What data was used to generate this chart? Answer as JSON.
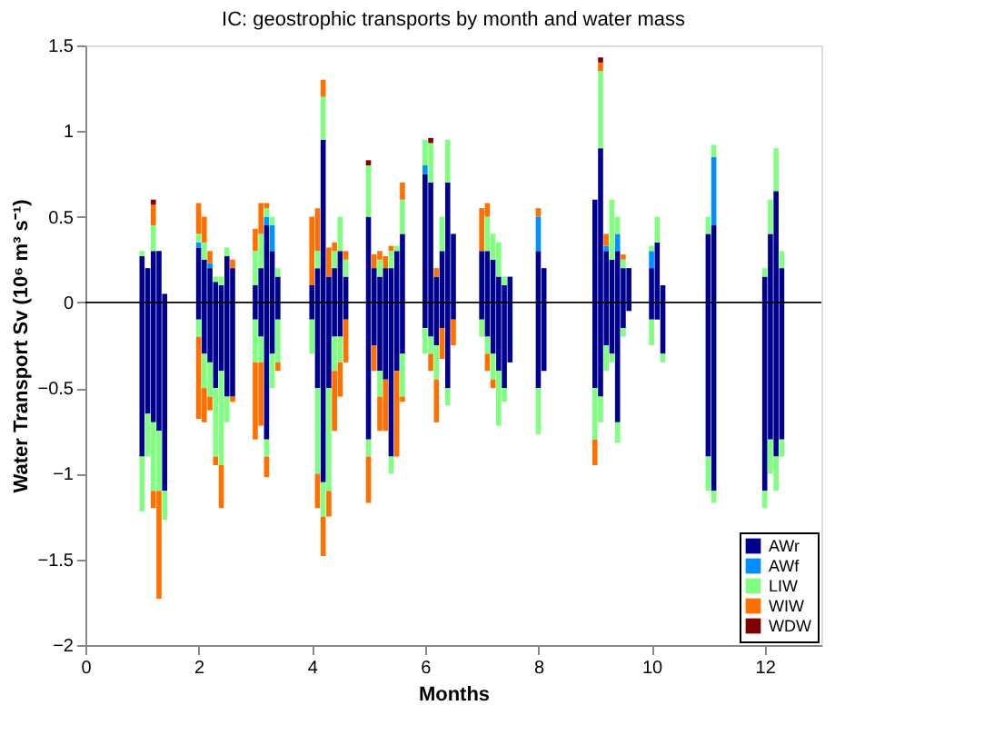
{
  "chart_data": {
    "type": "bar",
    "stacked": true,
    "title": "IC: geostrophic transports by month and water mass",
    "xlabel": "Months",
    "ylabel": "Water Transport Sv (10⁶ m³ s⁻¹)",
    "x": [
      1.0,
      1.1,
      1.2,
      1.3,
      1.4,
      2.0,
      2.1,
      2.2,
      2.3,
      2.4,
      2.5,
      2.6,
      3.0,
      3.1,
      3.2,
      3.3,
      3.4,
      4.0,
      4.1,
      4.2,
      4.3,
      4.4,
      4.5,
      4.6,
      5.0,
      5.1,
      5.2,
      5.3,
      5.4,
      5.5,
      5.6,
      6.0,
      6.1,
      6.2,
      6.3,
      6.4,
      6.5,
      7.0,
      7.1,
      7.2,
      7.3,
      7.4,
      7.5,
      8.0,
      8.1,
      9.0,
      9.1,
      9.2,
      9.3,
      9.4,
      9.5,
      9.6,
      10.0,
      10.1,
      10.2,
      11.0,
      11.1,
      12.0,
      12.1,
      12.2,
      12.3
    ],
    "series": [
      {
        "name": "AWr",
        "color": "#00008f",
        "values": [
          0.27,
          0.2,
          0.3,
          0.3,
          0.05,
          0.32,
          0.25,
          0.2,
          0.12,
          0.1,
          0.27,
          0.2,
          0.1,
          0.2,
          0.45,
          0.3,
          0.15,
          0.1,
          0.2,
          0.95,
          0.15,
          0.2,
          0.3,
          0.15,
          0.5,
          0.2,
          0.15,
          0.2,
          0.2,
          0.3,
          0.4,
          0.75,
          0.7,
          0.15,
          0.3,
          0.7,
          0.4,
          0.3,
          0.3,
          0.25,
          0.15,
          0.1,
          0.15,
          0.3,
          0.2,
          0.6,
          0.9,
          0.3,
          0.25,
          0.3,
          0.2,
          0.2,
          0.2,
          0.35,
          0.1,
          0.4,
          0.45,
          0.15,
          0.4,
          0.65,
          0.2
        ]
      },
      {
        "name": "AWf",
        "color": "#0090ff",
        "values": [
          0,
          0,
          0,
          0,
          0,
          0.03,
          0,
          0.03,
          0,
          0,
          0,
          0,
          0,
          0,
          0.05,
          0.15,
          0,
          0,
          0,
          0,
          0,
          0,
          0,
          0,
          0,
          0,
          0,
          0,
          0,
          0,
          0,
          0.05,
          0,
          0,
          0,
          0,
          0,
          0,
          0,
          0,
          0,
          0,
          0,
          0.2,
          0,
          0,
          0,
          0.03,
          0,
          0.1,
          0,
          0,
          0.1,
          0,
          0,
          0,
          0.4,
          0,
          0,
          0,
          0
        ]
      },
      {
        "name": "LIW",
        "color": "#80ff80",
        "values": [
          0.03,
          0,
          0.15,
          0,
          0,
          0.05,
          0.1,
          0,
          0.03,
          0.05,
          0.05,
          0,
          0.2,
          0.2,
          0.05,
          0.05,
          0.05,
          0,
          0.1,
          0.25,
          0,
          0.1,
          0.2,
          0.1,
          0.3,
          0,
          0.1,
          0,
          0.1,
          0.03,
          0.2,
          0.15,
          0.23,
          0,
          0.2,
          0.25,
          0,
          0,
          0.2,
          0.15,
          0.2,
          0.05,
          0,
          0,
          0,
          0,
          0.45,
          0,
          0.35,
          0.1,
          0.05,
          0,
          0.03,
          0.15,
          0,
          0.1,
          0.07,
          0.05,
          0.2,
          0.25,
          0.1
        ]
      },
      {
        "name": "WIW",
        "color": "#ff7000",
        "values": [
          0,
          0,
          0.12,
          0,
          0,
          0.18,
          0.15,
          0.07,
          0,
          0,
          0,
          0.05,
          0.13,
          0.18,
          0.03,
          0,
          0,
          0.4,
          0.25,
          0.1,
          0.17,
          0.05,
          0,
          0.05,
          0,
          0.08,
          0.05,
          0.07,
          0.03,
          0,
          0.1,
          0,
          0,
          0.05,
          0,
          0,
          0,
          0.25,
          0.08,
          0,
          0,
          0,
          0,
          0.05,
          0,
          0,
          0.05,
          0.07,
          0,
          0,
          0.03,
          0,
          0,
          0,
          0,
          0,
          0,
          0,
          0,
          0,
          0
        ]
      },
      {
        "name": "WDW",
        "color": "#800000",
        "values": [
          0,
          0,
          0.03,
          0,
          0,
          0,
          0,
          0,
          0,
          0,
          0,
          0,
          0,
          0,
          0,
          0,
          0,
          0,
          0,
          0,
          0,
          0,
          0,
          0,
          0.03,
          0,
          0,
          0,
          0,
          0,
          0,
          0,
          0.03,
          0,
          0,
          0,
          0,
          0,
          0,
          0,
          0,
          0,
          0,
          0,
          0,
          0,
          0.03,
          0,
          0,
          0,
          0,
          0,
          0,
          0,
          0,
          0,
          0,
          0,
          0,
          0,
          0
        ]
      },
      {
        "color": "#00008f",
        "values": [
          -0.9,
          -0.65,
          -0.7,
          -0.75,
          -1.1,
          -0.1,
          -0.3,
          -0.35,
          -0.5,
          -0.4,
          -0.55,
          -0.55,
          -0.1,
          -0.2,
          -0.8,
          -0.3,
          -0.1,
          -0.1,
          -0.5,
          -1.05,
          -0.5,
          -0.2,
          -0.2,
          -0.1,
          -0.8,
          -0.25,
          -0.4,
          -0.45,
          -0.9,
          -0.4,
          -0.3,
          -0.15,
          -0.2,
          -0.25,
          -0.15,
          -0.5,
          -0.1,
          -0.1,
          -0.2,
          -0.3,
          -0.4,
          -0.5,
          -0.35,
          -0.5,
          -0.4,
          -0.5,
          -0.55,
          -0.25,
          -0.3,
          -0.7,
          -0.15,
          -0.05,
          -0.1,
          -0.1,
          -0.3,
          -0.9,
          -1.1,
          -1.1,
          -0.8,
          -0.9,
          -0.8
        ]
      },
      {
        "color": "#0090ff",
        "values": [
          0,
          0,
          0,
          0,
          0,
          0,
          0,
          0,
          0,
          0,
          0,
          0,
          0,
          0,
          0,
          0,
          0,
          0,
          0,
          0,
          0,
          0,
          0,
          0,
          0,
          0,
          0,
          0,
          0,
          0,
          0,
          0,
          0,
          0,
          0,
          0,
          0,
          0,
          0,
          0,
          0,
          0,
          0,
          0,
          0,
          0,
          0,
          0,
          0,
          0,
          0,
          0,
          0,
          0,
          0,
          0,
          0,
          0,
          0,
          0,
          0
        ]
      },
      {
        "color": "#80ff80",
        "values": [
          -0.32,
          -0.25,
          -0.4,
          -0.35,
          -0.17,
          -0.1,
          -0.2,
          -0.2,
          -0.4,
          -0.55,
          -0.15,
          0,
          -0.25,
          -0.15,
          -0.1,
          -0.2,
          -0.25,
          -0.2,
          -0.5,
          -0.2,
          -0.6,
          -0.2,
          -0.15,
          0,
          -0.1,
          0,
          -0.15,
          0,
          -0.1,
          0,
          -0.25,
          -0.15,
          -0.1,
          -0.2,
          0,
          -0.1,
          0,
          -0.1,
          -0.1,
          -0.15,
          -0.32,
          -0.08,
          0,
          -0.27,
          0,
          -0.3,
          -0.15,
          -0.15,
          -0.05,
          -0.12,
          -0.05,
          0,
          -0.15,
          0,
          -0.05,
          -0.2,
          -0.07,
          -0.1,
          -0.2,
          -0.2,
          -0.1
        ]
      },
      {
        "color": "#ff7000",
        "values": [
          0,
          0,
          -0.1,
          -0.63,
          0,
          -0.48,
          -0.2,
          -0.08,
          -0.05,
          -0.25,
          0,
          -0.03,
          -0.45,
          -0.37,
          -0.12,
          0,
          -0.05,
          0,
          -0.2,
          -0.23,
          -0.15,
          -0.35,
          -0.2,
          -0.25,
          -0.27,
          -0.15,
          -0.2,
          -0.3,
          0,
          -0.5,
          -0.03,
          0,
          -0.1,
          -0.25,
          -0.18,
          0,
          -0.15,
          0,
          -0.1,
          -0.05,
          0,
          0,
          0,
          0,
          0,
          -0.15,
          0,
          0,
          0,
          0,
          0,
          0,
          0,
          0,
          0,
          0,
          0,
          0,
          0,
          0,
          0
        ]
      },
      {
        "color": "#800000",
        "values": [
          0,
          0,
          0,
          0,
          0,
          0,
          0,
          0,
          0,
          0,
          0,
          0,
          0,
          0,
          0,
          0,
          0,
          0,
          0,
          0,
          0,
          0,
          0,
          0,
          0,
          0,
          0,
          0,
          0,
          0,
          0,
          0,
          0,
          0,
          0,
          0,
          0,
          0,
          0,
          0,
          0,
          0,
          0,
          0,
          0,
          0,
          0,
          0,
          0,
          0,
          0,
          0,
          0,
          0,
          0,
          0,
          0,
          0,
          0,
          0,
          0
        ]
      }
    ],
    "xlim": [
      0,
      13
    ],
    "xticks": [
      0,
      2,
      4,
      6,
      8,
      10,
      12
    ],
    "ylim": [
      -2,
      1.5
    ],
    "yticks": [
      -2,
      -1.5,
      -1,
      -0.5,
      0,
      0.5,
      1,
      1.5
    ],
    "ref_lines": [
      {
        "axis": "y",
        "value": 0,
        "color": "#000000"
      }
    ],
    "legend": "bottom right",
    "grid": false
  }
}
